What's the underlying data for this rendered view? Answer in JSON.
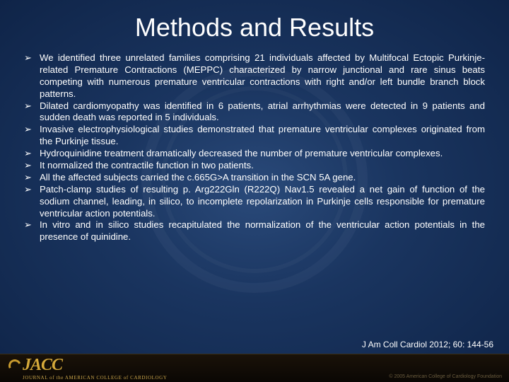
{
  "title": "Methods and Results",
  "bullets": [
    "We identified three unrelated families comprising 21 individuals affected by Multifocal Ectopic Purkinje-related Premature Contractions (MEPPC) characterized by narrow junctional and rare sinus beats competing with numerous premature ventricular contractions with right and/or left bundle branch block patterns.",
    "Dilated cardiomyopathy was identified in 6 patients, atrial arrhythmias were detected in 9 patients and sudden death was reported in 5 individuals.",
    "Invasive electrophysiological studies demonstrated that premature ventricular complexes originated from the Purkinje tissue.",
    "Hydroquinidine treatment dramatically decreased the number of premature ventricular complexes.",
    "It normalized the contractile function in two patients.",
    "All the affected subjects carried the c.665G>A transition in the SCN 5A gene.",
    "Patch-clamp studies of resulting p. Arg222Gln (R222Q) Nav1.5 revealed a net gain of function of the sodium channel, leading, in silico, to incomplete repolarization in Purkinje cells responsible for premature ventricular action potentials.",
    "In vitro and in silico studies recapitulated the normalization of the ventricular action potentials in the presence of quinidine."
  ],
  "citation": "J Am Coll Cardiol 2012; 60: 144-56",
  "footer": {
    "logo_text": "JACC",
    "logo_subtitle": "JOURNAL of the AMERICAN COLLEGE of CARDIOLOGY",
    "copyright": "© 2005 American College of Cardiology Foundation"
  },
  "colors": {
    "bg_center": "#2a4a7a",
    "bg_edge": "#0f2448",
    "text": "#ffffff",
    "accent_gold": "#d4a83a",
    "footer_bg": "#1a1208"
  }
}
